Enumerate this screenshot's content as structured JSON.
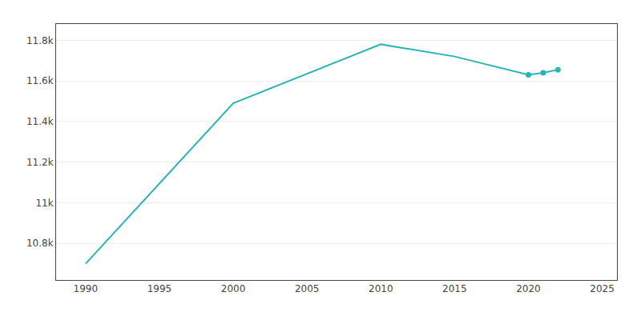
{
  "chart_data": {
    "type": "line",
    "x": [
      1990,
      2000,
      2010,
      2015,
      2020,
      2021,
      2022
    ],
    "series": [
      {
        "color": "#2ab5b5",
        "line_style": "solid",
        "marker": "none",
        "values": [
          10700,
          11490,
          11780,
          11720,
          11630,
          11640,
          11655
        ]
      },
      {
        "type": "scatter",
        "color": "#2ab5b5",
        "marker": "circle",
        "values": [
          null,
          null,
          null,
          null,
          11630,
          11640,
          11655
        ]
      }
    ],
    "xlim": [
      1988,
      2026
    ],
    "ylim": [
      10620,
      11880
    ],
    "xticks": [
      1990,
      1995,
      2000,
      2005,
      2010,
      2015,
      2020,
      2025
    ],
    "yticks": [
      {
        "value": 10800,
        "label": "10.8k"
      },
      {
        "value": 11000,
        "label": "11k"
      },
      {
        "value": 11200,
        "label": "11.2k"
      },
      {
        "value": 11400,
        "label": "11.4k"
      },
      {
        "value": 11600,
        "label": "11.6k"
      },
      {
        "value": 11800,
        "label": "11.8k"
      }
    ],
    "grid": true
  }
}
